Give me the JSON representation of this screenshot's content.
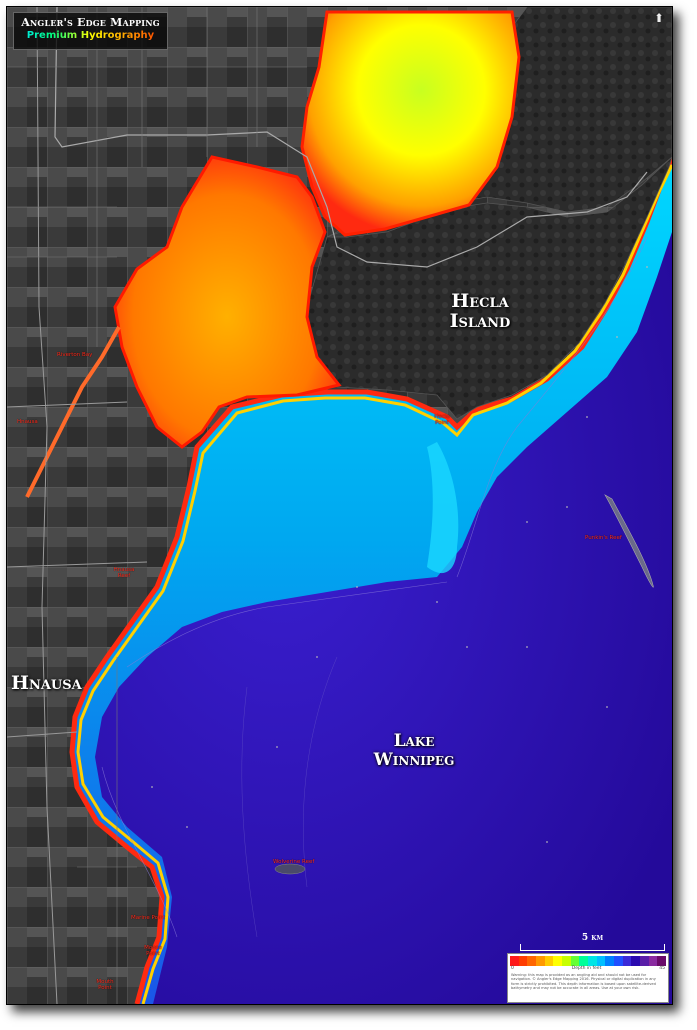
{
  "header": {
    "title": "Angler's Edge Mapping",
    "subtitle": "Premium Hydrography",
    "north_symbol": "⬆"
  },
  "labels": {
    "hecla": "Hecla Island",
    "hnausa": "Hnausa",
    "lake": "Lake Winnipeg",
    "small": [
      "Hecla Point",
      "Punkin's Reef",
      "Wolverine Reef",
      "Hnausa Reef",
      "Hnausa",
      "Riverton Bay",
      "Marine Point",
      "Moose Point",
      "Mouth Point"
    ]
  },
  "scale": {
    "text": "5 km"
  },
  "legend": {
    "caption": "Depth in feet",
    "min": "0",
    "max": "45",
    "colors": [
      "#ff1a1a",
      "#ff3c00",
      "#ff6600",
      "#ff9900",
      "#ffcc00",
      "#ffff00",
      "#c8ff00",
      "#66ff33",
      "#00ff99",
      "#00e5e5",
      "#00bfff",
      "#0080ff",
      "#2050ff",
      "#3b2ad8",
      "#2a0ab0",
      "#5a1ea8",
      "#8a2aa0",
      "#6a0a6a"
    ],
    "disclaimer": "Warning: this map is provided as an angling aid and should not be used for navigation. © Angler's Edge Mapping 2016. Physical or digital duplication in any form is strictly prohibited. This depth information is based upon satellite-derived bathymetry and may not be accurate in all areas. Use at your own risk."
  },
  "colors": {
    "land": "#2a2a2a",
    "deep": "#2a0aa8",
    "shallow": "#ff3000"
  }
}
